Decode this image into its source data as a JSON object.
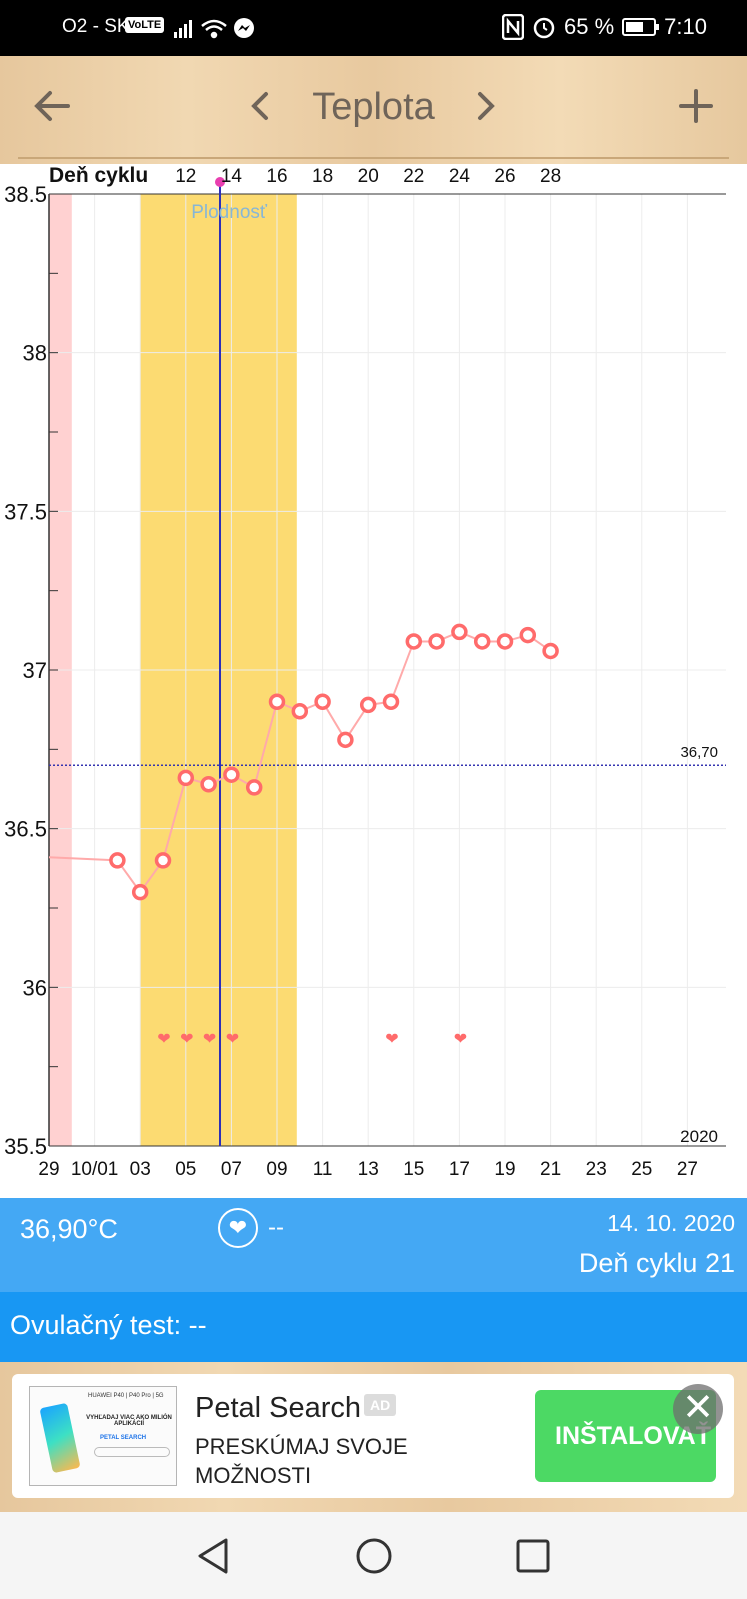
{
  "status_bar": {
    "carrier": "O2 - SK",
    "volte": "VoLTE",
    "battery": "65 %",
    "battery_level": 0.65,
    "time": "7:10",
    "icons": [
      "signal-icon",
      "wifi-icon",
      "messenger-icon",
      "nfc-icon",
      "alarm-icon",
      "battery-icon"
    ]
  },
  "header": {
    "title": "Teplota",
    "back_icon": "arrow-left-icon",
    "prev_icon": "chevron-left-icon",
    "next_icon": "chevron-right-icon",
    "add_icon": "plus-icon"
  },
  "chart_data": {
    "type": "line",
    "top_axis_label": "Deň cyklu",
    "top_ticks": [
      "12",
      "14",
      "16",
      "18",
      "20",
      "22",
      "24",
      "26",
      "28"
    ],
    "bottom_ticks": [
      "29",
      "10/01",
      "03",
      "05",
      "07",
      "09",
      "11",
      "13",
      "15",
      "17",
      "19",
      "21",
      "23",
      "25",
      "27"
    ],
    "y_ticks": [
      "38.5",
      "38",
      "37.5",
      "37",
      "36.5",
      "36",
      "35.5"
    ],
    "ylim": [
      35.5,
      38.5
    ],
    "year": "2020",
    "fertile_label": "Plodnosť",
    "coverline_label": "36,70",
    "coverline_value": 36.7,
    "fertile_window_days": [
      4,
      10
    ],
    "period_days": [
      0
    ],
    "ovulation_day": 7.5,
    "heart_days": [
      5,
      6,
      7,
      8,
      15,
      18
    ],
    "series": [
      {
        "points": [
          {
            "day": 0,
            "temp": 36.41,
            "marker": false
          },
          {
            "day": 3,
            "temp": 36.4,
            "marker": true
          },
          {
            "day": 4,
            "temp": 36.3,
            "marker": true
          },
          {
            "day": 5,
            "temp": 36.4,
            "marker": true
          },
          {
            "day": 6,
            "temp": 36.66,
            "marker": true
          },
          {
            "day": 7,
            "temp": 36.64,
            "marker": true
          },
          {
            "day": 8,
            "temp": 36.67,
            "marker": true
          },
          {
            "day": 9,
            "temp": 36.63,
            "marker": true
          },
          {
            "day": 10,
            "temp": 36.9,
            "marker": true
          },
          {
            "day": 11,
            "temp": 36.87,
            "marker": true
          },
          {
            "day": 12,
            "temp": 36.9,
            "marker": true
          },
          {
            "day": 13,
            "temp": 36.78,
            "marker": true
          },
          {
            "day": 14,
            "temp": 36.89,
            "marker": true
          },
          {
            "day": 15,
            "temp": 36.9,
            "marker": true
          },
          {
            "day": 16,
            "temp": 37.09,
            "marker": true
          },
          {
            "day": 17,
            "temp": 37.09,
            "marker": true
          },
          {
            "day": 18,
            "temp": 37.12,
            "marker": true
          },
          {
            "day": 19,
            "temp": 37.09,
            "marker": true
          },
          {
            "day": 20,
            "temp": 37.09,
            "marker": true
          },
          {
            "day": 21,
            "temp": 37.11,
            "marker": true
          },
          {
            "day": 22,
            "temp": 37.06,
            "marker": true
          }
        ]
      }
    ],
    "colors": {
      "line": "#ffaaaa",
      "marker": "#ff6b6b",
      "fertile": "#fcdb72",
      "period": "#ffd1d1",
      "ovulation": "#2c2fb8",
      "coverline": "#3434b0"
    }
  },
  "info": {
    "current_temp": "36,90°C",
    "heart_value": "--",
    "date": "14. 10. 2020",
    "cycle_day": "Deň cyklu 21"
  },
  "ovulation_test": {
    "label": "Ovulačný test: --"
  },
  "ad": {
    "title": "Petal Search",
    "badge": "AD",
    "subtitle_line1": "PRESKÚMAJ SVOJE",
    "subtitle_line2": "MOŽNOSTI",
    "button": "INŠTALOVAŤ",
    "thumb_text1": "HUAWEI P40 | P40 Pro | 5G",
    "thumb_text2": "VYHĽADAJ VIAC AKO MILIÓN APLIKÁCIÍ",
    "thumb_text3": "PETAL SEARCH"
  },
  "nav": {
    "icons": [
      "back-triangle-icon",
      "home-circle-icon",
      "recents-square-icon"
    ]
  }
}
